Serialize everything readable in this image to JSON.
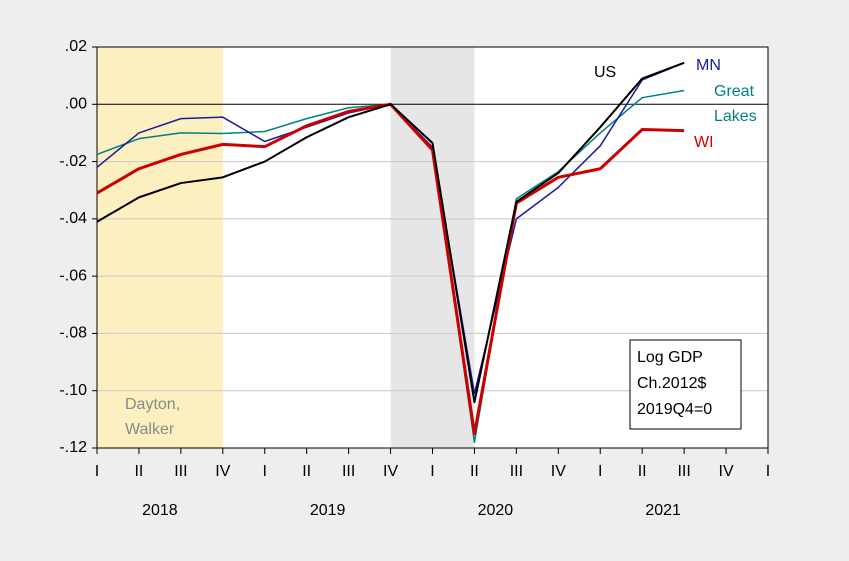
{
  "chart_data": {
    "type": "line",
    "x": [
      "2018Q1",
      "2018Q2",
      "2018Q3",
      "2018Q4",
      "2019Q1",
      "2019Q2",
      "2019Q3",
      "2019Q4",
      "2020Q1",
      "2020Q2",
      "2020Q3",
      "2020Q4",
      "2021Q1",
      "2021Q2",
      "2021Q3"
    ],
    "xticks": [
      "I",
      "II",
      "III",
      "IV",
      "I",
      "II",
      "III",
      "IV",
      "I",
      "II",
      "III",
      "IV",
      "I",
      "II",
      "III",
      "IV",
      "I"
    ],
    "years": [
      "2018",
      "2019",
      "2020",
      "2021"
    ],
    "series": [
      {
        "name": "Great Lakes",
        "color": "#008080",
        "values": [
          -0.0175,
          -0.012,
          -0.01,
          -0.0102,
          -0.0095,
          -0.005,
          -0.0012,
          0,
          -0.0155,
          -0.118,
          -0.033,
          -0.0235,
          -0.01,
          0.0023,
          0.0048
        ]
      },
      {
        "name": "MN",
        "color": "#1a1a9c",
        "values": [
          -0.022,
          -0.01,
          -0.005,
          -0.0045,
          -0.013,
          -0.008,
          -0.003,
          0,
          -0.015,
          -0.101,
          -0.04,
          -0.029,
          -0.0145,
          0.0085,
          0.0145
        ]
      },
      {
        "name": "WI",
        "color": "#cc0000",
        "values": [
          -0.031,
          -0.0225,
          -0.0175,
          -0.014,
          -0.0148,
          -0.0075,
          -0.0025,
          0,
          -0.016,
          -0.115,
          -0.0345,
          -0.0255,
          -0.0225,
          -0.0088,
          -0.0092
        ]
      },
      {
        "name": "US",
        "color": "#000000",
        "values": [
          -0.041,
          -0.0325,
          -0.0275,
          -0.0255,
          -0.02,
          -0.0115,
          -0.0045,
          0,
          -0.0135,
          -0.104,
          -0.034,
          -0.024,
          -0.008,
          0.009,
          0.0145
        ]
      }
    ],
    "ylim": [
      -0.12,
      0.02
    ],
    "yticks": [
      {
        "value": 0.02,
        "label": ".02"
      },
      {
        "value": 0,
        "label": ".00"
      },
      {
        "value": -0.02,
        "label": "-.02"
      },
      {
        "value": -0.04,
        "label": "-.04"
      },
      {
        "value": -0.06,
        "label": "-.06"
      },
      {
        "value": -0.08,
        "label": "-.08"
      },
      {
        "value": -0.1,
        "label": "-.10"
      },
      {
        "value": -0.12,
        "label": "-.12"
      }
    ],
    "grid": true,
    "shaded_regions": [
      {
        "start": "2018Q1",
        "end": "2018Q4",
        "color": "#fdf0c0",
        "label": [
          "Dayton,",
          "Walker"
        ]
      },
      {
        "start": "2019Q4",
        "end": "2020Q2",
        "color": "#e6e6e6"
      }
    ],
    "annotation": [
      "Log GDP",
      "Ch.2012$",
      "2019Q4=0"
    ]
  }
}
